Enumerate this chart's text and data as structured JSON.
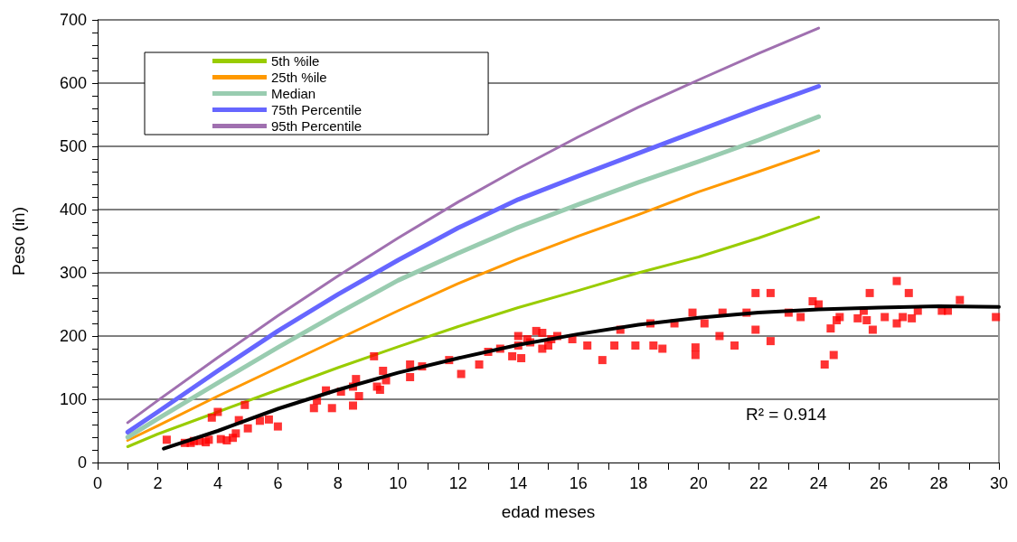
{
  "chart_data": {
    "type": "line",
    "xlabel": "edad meses",
    "ylabel": "Peso (in)",
    "xlim": [
      0,
      30
    ],
    "xticks": [
      0,
      {
        "value": 1,
        "label": null
      },
      2,
      {
        "value": 3,
        "label": null
      },
      4,
      {
        "value": 5,
        "label": null
      },
      6,
      {
        "value": 7,
        "label": null
      },
      8,
      {
        "value": 9,
        "label": null
      },
      10,
      {
        "value": 11,
        "label": null
      },
      12,
      {
        "value": 13,
        "label": null
      },
      14,
      {
        "value": 15,
        "label": null
      },
      16,
      {
        "value": 17,
        "label": null
      },
      18,
      {
        "value": 19,
        "label": null
      },
      20,
      {
        "value": 21,
        "label": null
      },
      22,
      {
        "value": 23,
        "label": null
      },
      24,
      {
        "value": 25,
        "label": null
      },
      26,
      {
        "value": 27,
        "label": null
      },
      28,
      {
        "value": 29,
        "label": null
      },
      30
    ],
    "ylim": [
      0,
      700
    ],
    "yticks": [
      0,
      {
        "value": 20,
        "label": null
      },
      {
        "value": 40,
        "label": null
      },
      {
        "value": 60,
        "label": null
      },
      {
        "value": 80,
        "label": null
      },
      100,
      {
        "value": 120,
        "label": null
      },
      {
        "value": 140,
        "label": null
      },
      {
        "value": 160,
        "label": null
      },
      {
        "value": 180,
        "label": null
      },
      200,
      {
        "value": 220,
        "label": null
      },
      {
        "value": 240,
        "label": null
      },
      {
        "value": 260,
        "label": null
      },
      {
        "value": 280,
        "label": null
      },
      300,
      {
        "value": 320,
        "label": null
      },
      {
        "value": 340,
        "label": null
      },
      {
        "value": 360,
        "label": null
      },
      {
        "value": 380,
        "label": null
      },
      400,
      {
        "value": 420,
        "label": null
      },
      {
        "value": 440,
        "label": null
      },
      {
        "value": 460,
        "label": null
      },
      {
        "value": 480,
        "label": null
      },
      500,
      {
        "value": 520,
        "label": null
      },
      {
        "value": 540,
        "label": null
      },
      {
        "value": 560,
        "label": null
      },
      {
        "value": 580,
        "label": null
      },
      600,
      {
        "value": 620,
        "label": null
      },
      {
        "value": 640,
        "label": null
      },
      {
        "value": 660,
        "label": null
      },
      {
        "value": 680,
        "label": null
      },
      700
    ],
    "grid": "y",
    "legend": "top left",
    "marker": "none",
    "annotations": [
      "R² = 0.914"
    ],
    "series": [
      {
        "name": "5th %ile",
        "color": "#99cc00",
        "x": [
          1,
          2,
          4,
          6,
          8,
          10,
          12,
          14,
          16,
          18,
          20,
          22,
          24
        ],
        "values": [
          25,
          45,
          80,
          115,
          150,
          183,
          215,
          245,
          272,
          300,
          325,
          355,
          388
        ]
      },
      {
        "name": "25th %ile",
        "color": "#ff9900",
        "x": [
          1,
          2,
          4,
          6,
          8,
          10,
          12,
          14,
          16,
          18,
          20,
          22,
          24
        ],
        "values": [
          35,
          58,
          105,
          150,
          195,
          240,
          283,
          322,
          358,
          392,
          428,
          460,
          493
        ]
      },
      {
        "name": "Median",
        "color": "#99ccb0",
        "x": [
          1,
          2,
          4,
          6,
          8,
          10,
          12,
          14,
          16,
          18,
          20,
          22,
          24
        ],
        "values": [
          40,
          69,
          126,
          182,
          236,
          288,
          331,
          372,
          408,
          443,
          476,
          510,
          547
        ]
      },
      {
        "name": "75th Percentile",
        "color": "#6666ff",
        "x": [
          1,
          2,
          4,
          6,
          8,
          10,
          12,
          14,
          16,
          18,
          20,
          22,
          24
        ],
        "values": [
          48,
          80,
          145,
          208,
          266,
          320,
          371,
          416,
          453,
          489,
          525,
          561,
          595
        ]
      },
      {
        "name": "95th Percentile",
        "color": "#a070b0",
        "x": [
          1,
          2,
          4,
          6,
          8,
          10,
          12,
          14,
          16,
          18,
          20,
          22,
          24
        ],
        "values": [
          63,
          98,
          166,
          232,
          295,
          355,
          412,
          465,
          515,
          562,
          605,
          647,
          687
        ]
      },
      {
        "type": "scatter",
        "marker": "square",
        "color": "#ff0000",
        "x": [
          2.3,
          2.9,
          3.1,
          3.2,
          3.4,
          3.6,
          3.7,
          3.8,
          4.0,
          4.1,
          4.3,
          4.5,
          4.6,
          4.7,
          4.9,
          5.0,
          5.4,
          5.7,
          6.0,
          7.2,
          7.3,
          7.6,
          7.8,
          8.1,
          8.5,
          8.5,
          8.6,
          8.7,
          9.2,
          9.3,
          9.5,
          9.6,
          9.4,
          10.4,
          10.4,
          10.8,
          11.7,
          12.1,
          12.7,
          13.0,
          13.4,
          13.8,
          14.0,
          14.0,
          14.1,
          14.3,
          14.4,
          14.6,
          14.8,
          14.8,
          15.0,
          15.1,
          15.3,
          15.8,
          16.3,
          16.8,
          17.2,
          17.4,
          17.9,
          18.4,
          18.5,
          18.8,
          19.2,
          19.8,
          19.9,
          19.9,
          20.2,
          20.7,
          20.8,
          21.2,
          21.6,
          21.9,
          21.9,
          22.4,
          22.4,
          23.0,
          23.4,
          23.8,
          24.0,
          24.2,
          24.5,
          24.4,
          24.6,
          24.7,
          25.3,
          25.5,
          25.6,
          25.7,
          25.8,
          26.2,
          26.6,
          26.6,
          26.8,
          27.0,
          27.1,
          27.3,
          28.1,
          28.3,
          28.7,
          29.9
        ],
        "values": [
          36,
          31,
          31,
          34,
          34,
          32,
          36,
          71,
          80,
          37,
          35,
          39,
          46,
          67,
          91,
          54,
          66,
          68,
          57,
          86,
          98,
          114,
          86,
          112,
          90,
          120,
          132,
          105,
          168,
          120,
          145,
          130,
          115,
          155,
          135,
          152,
          162,
          140,
          155,
          175,
          180,
          168,
          185,
          200,
          165,
          195,
          190,
          208,
          205,
          180,
          185,
          195,
          200,
          195,
          185,
          162,
          185,
          210,
          185,
          220,
          185,
          180,
          220,
          237,
          182,
          170,
          220,
          200,
          237,
          185,
          237,
          210,
          268,
          268,
          192,
          237,
          230,
          255,
          250,
          155,
          170,
          212,
          225,
          230,
          228,
          240,
          225,
          268,
          210,
          230,
          220,
          287,
          230,
          268,
          228,
          240,
          240,
          240,
          257,
          230
        ]
      },
      {
        "color": "#000000",
        "x": [
          2.2,
          4,
          6,
          8,
          10,
          12,
          14,
          16,
          18,
          20,
          22,
          24,
          26,
          28,
          30
        ],
        "values": [
          22,
          50,
          85,
          115,
          142,
          165,
          186,
          203,
          218,
          229,
          237,
          242,
          245,
          247,
          246
        ]
      }
    ]
  }
}
